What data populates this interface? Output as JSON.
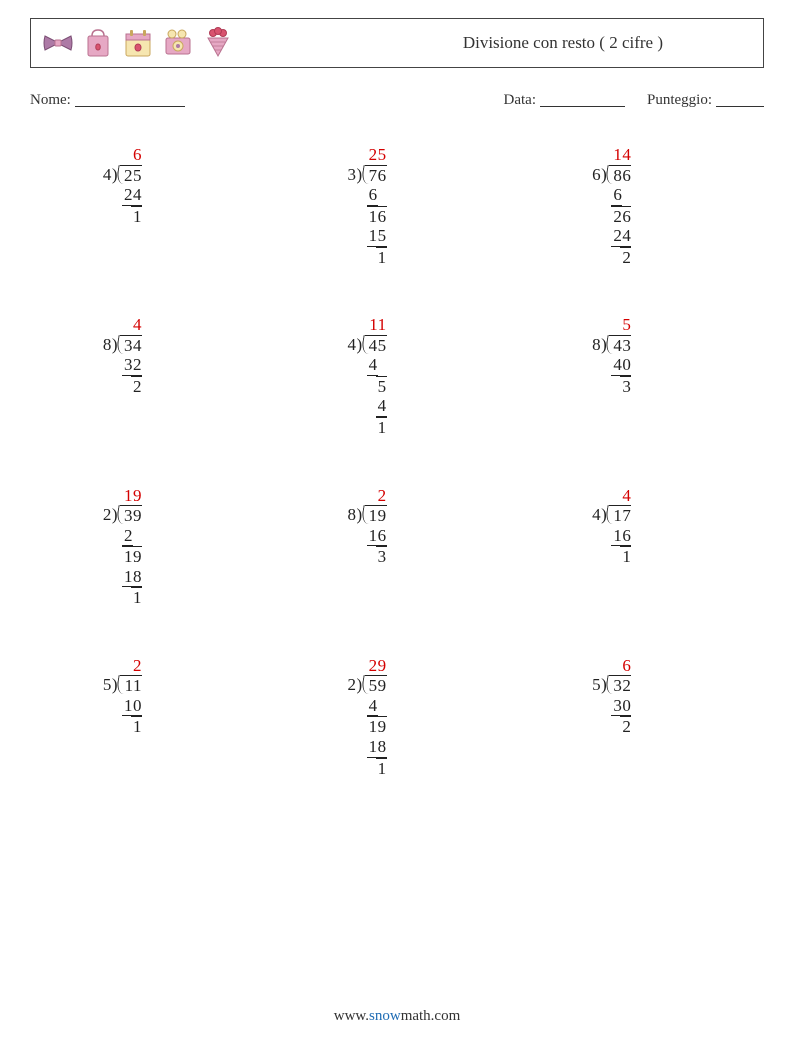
{
  "colors": {
    "quotient": "#d40000",
    "text": "#222222",
    "border": "#444444",
    "link_blue": "#206db5",
    "icon_pink": "#e6a8c4",
    "icon_purple": "#ad7aa6",
    "icon_cream": "#f6e6b0",
    "icon_tan": "#d9c187"
  },
  "header": {
    "title": "Divisione con resto ( 2 cifre )"
  },
  "infoRow": {
    "nome_label": "Nome:",
    "data_label": "Data:",
    "punteggio_label": "Punteggio:",
    "nome_line_w": 110,
    "data_line_w": 85,
    "punteggio_line_w": 48
  },
  "problems": [
    {
      "quotient": "6",
      "divisor": "4",
      "dividend": "25",
      "work": [
        {
          "t": "24",
          "u": true,
          "w": 2
        },
        {
          "t": "1",
          "o": true,
          "w": 1
        }
      ]
    },
    {
      "quotient": "25",
      "divisor": "3",
      "dividend": "76",
      "work": [
        {
          "t": "6",
          "u": true,
          "w": 1,
          "pad": 1
        },
        {
          "t": "16",
          "o": true,
          "w": 2
        },
        {
          "t": "15",
          "u": true,
          "w": 2
        },
        {
          "t": "1",
          "o": true,
          "w": 1
        }
      ]
    },
    {
      "quotient": "14",
      "divisor": "6",
      "dividend": "86",
      "work": [
        {
          "t": "6",
          "u": true,
          "w": 1,
          "pad": 1
        },
        {
          "t": "26",
          "o": true,
          "w": 2
        },
        {
          "t": "24",
          "u": true,
          "w": 2
        },
        {
          "t": "2",
          "o": true,
          "w": 1
        }
      ]
    },
    {
      "quotient": "4",
      "divisor": "8",
      "dividend": "34",
      "work": [
        {
          "t": "32",
          "u": true,
          "w": 2
        },
        {
          "t": "2",
          "o": true,
          "w": 1
        }
      ]
    },
    {
      "quotient": "11",
      "divisor": "4",
      "dividend": "45",
      "work": [
        {
          "t": "4",
          "u": true,
          "w": 1,
          "pad": 1
        },
        {
          "t": "5",
          "o": true,
          "w": 1
        },
        {
          "t": "4",
          "u": true,
          "w": 1
        },
        {
          "t": "1",
          "o": true,
          "w": 1
        }
      ]
    },
    {
      "quotient": "5",
      "divisor": "8",
      "dividend": "43",
      "work": [
        {
          "t": "40",
          "u": true,
          "w": 2
        },
        {
          "t": "3",
          "o": true,
          "w": 1
        }
      ]
    },
    {
      "quotient": "19",
      "divisor": "2",
      "dividend": "39",
      "work": [
        {
          "t": "2",
          "u": true,
          "w": 1,
          "pad": 1
        },
        {
          "t": "19",
          "o": true,
          "w": 2
        },
        {
          "t": "18",
          "u": true,
          "w": 2
        },
        {
          "t": "1",
          "o": true,
          "w": 1
        }
      ]
    },
    {
      "quotient": "2",
      "divisor": "8",
      "dividend": "19",
      "work": [
        {
          "t": "16",
          "u": true,
          "w": 2
        },
        {
          "t": "3",
          "o": true,
          "w": 1
        }
      ]
    },
    {
      "quotient": "4",
      "divisor": "4",
      "dividend": "17",
      "work": [
        {
          "t": "16",
          "u": true,
          "w": 2
        },
        {
          "t": "1",
          "o": true,
          "w": 1
        }
      ]
    },
    {
      "quotient": "2",
      "divisor": "5",
      "dividend": "11",
      "work": [
        {
          "t": "10",
          "u": true,
          "w": 2
        },
        {
          "t": "1",
          "o": true,
          "w": 1
        }
      ]
    },
    {
      "quotient": "29",
      "divisor": "2",
      "dividend": "59",
      "work": [
        {
          "t": "4",
          "u": true,
          "w": 1,
          "pad": 1
        },
        {
          "t": "19",
          "o": true,
          "w": 2
        },
        {
          "t": "18",
          "u": true,
          "w": 2
        },
        {
          "t": "1",
          "o": true,
          "w": 1
        }
      ]
    },
    {
      "quotient": "6",
      "divisor": "5",
      "dividend": "32",
      "work": [
        {
          "t": "30",
          "u": true,
          "w": 2
        },
        {
          "t": "2",
          "o": true,
          "w": 1
        }
      ]
    }
  ],
  "footer": {
    "pre": "www.",
    "brand": "snow",
    "post": "math.com"
  },
  "layout": {
    "digit_w": 9
  }
}
